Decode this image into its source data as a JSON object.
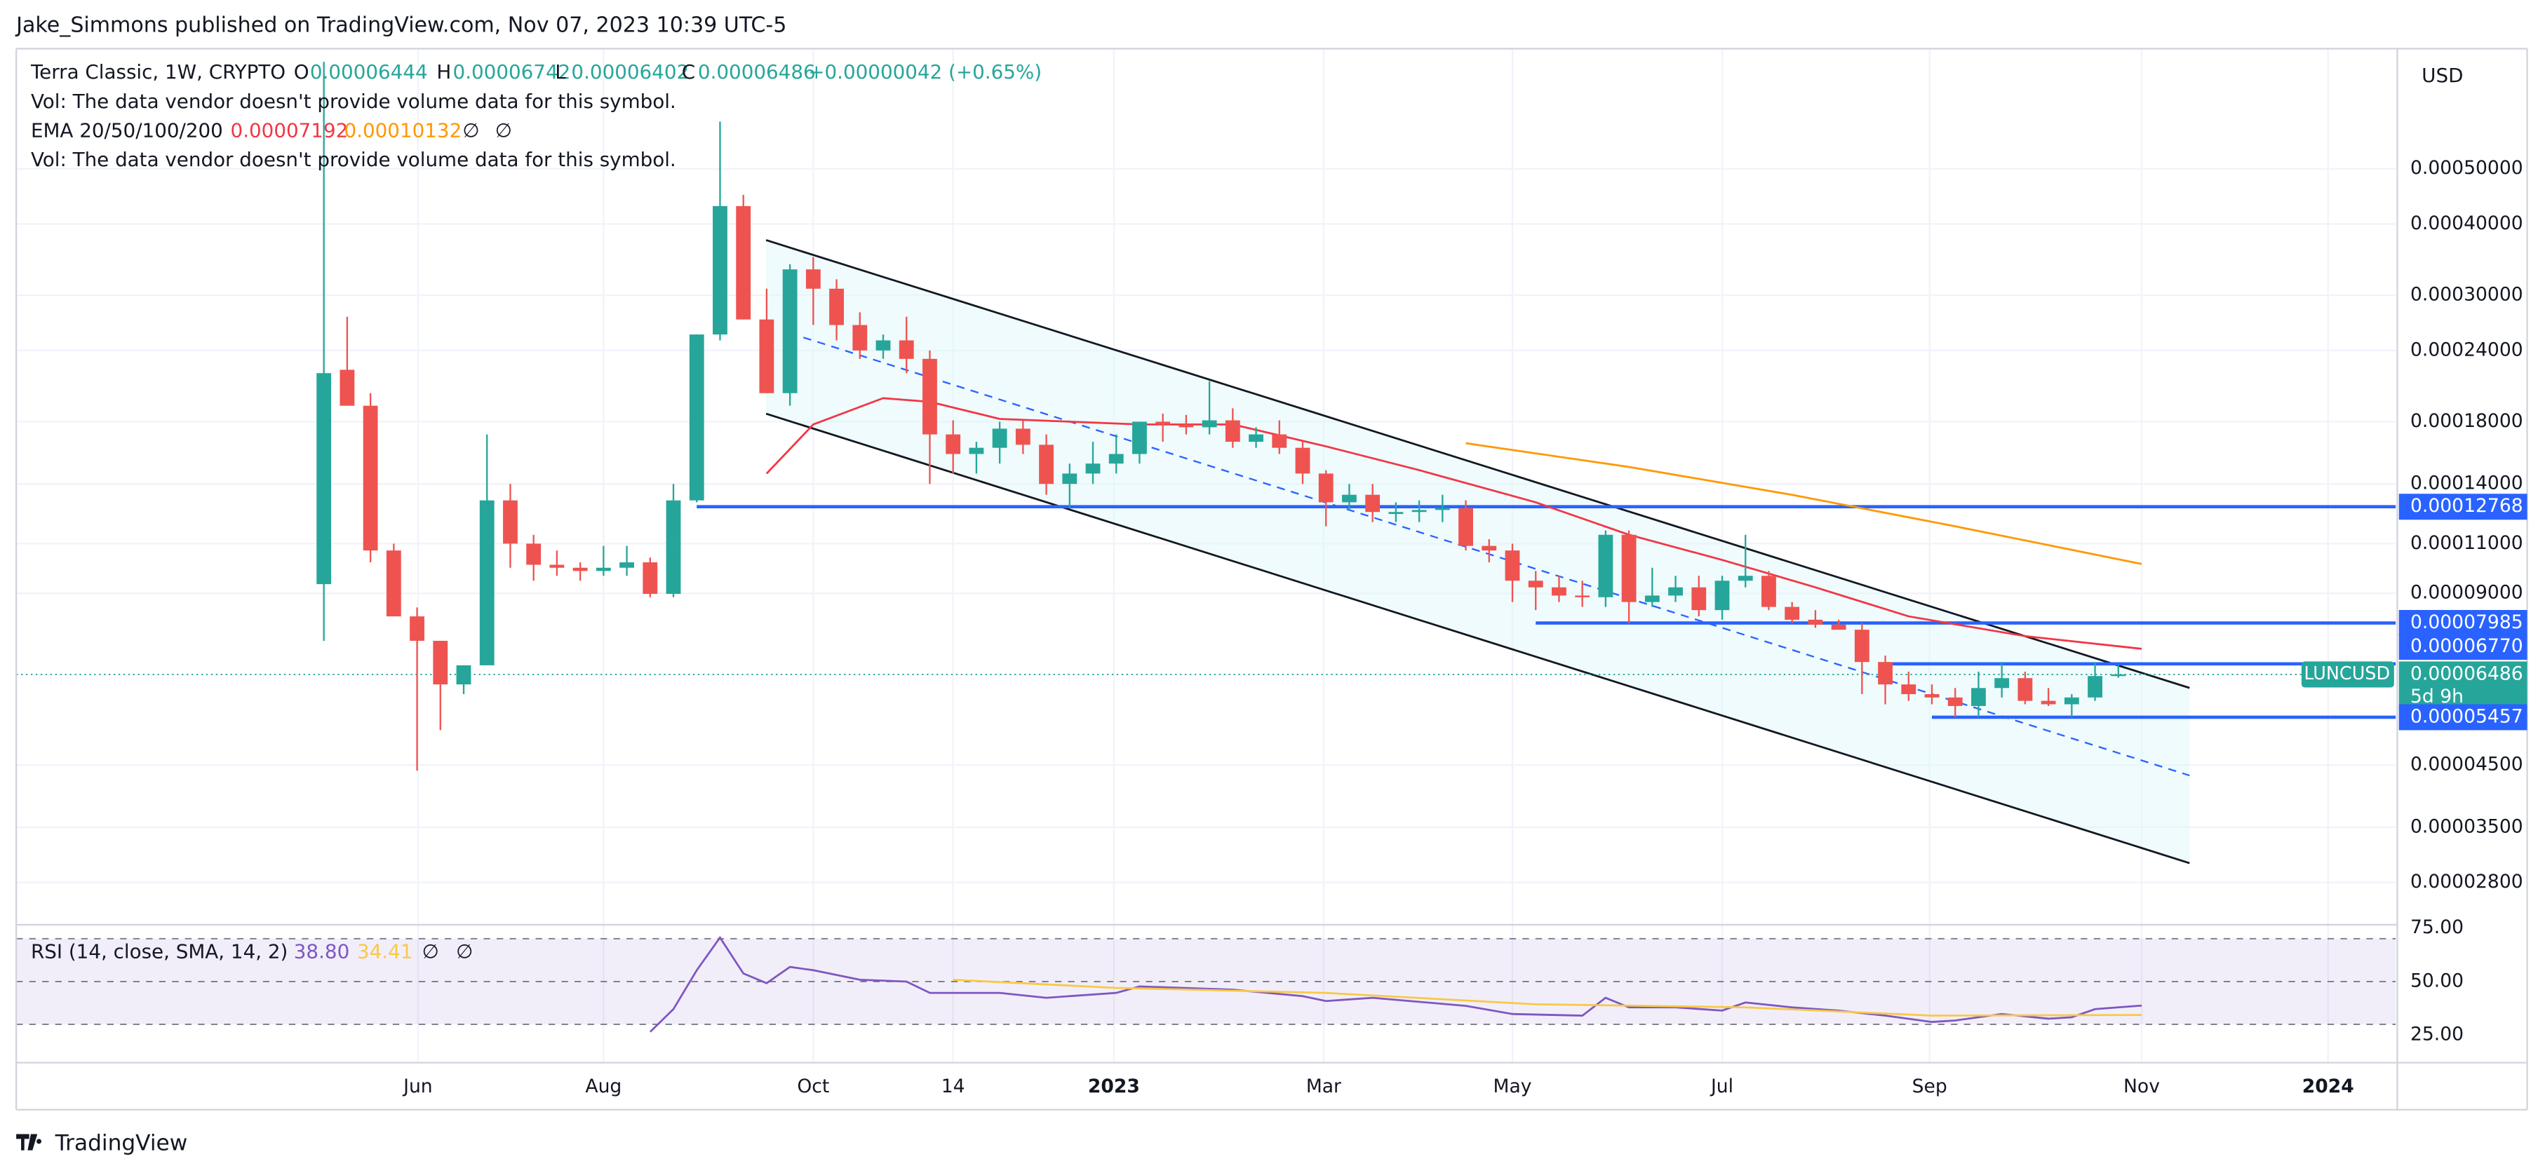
{
  "header": {
    "publisher": "Jake_Simmons published on TradingView.com, Nov 07, 2023 10:39 UTC-5",
    "brand": "TradingView"
  },
  "chart_data": [
    {
      "type": "candlestick",
      "symbol": "Terra Classic, 1W, CRYPTO",
      "ohlc_letters": [
        "O",
        "H",
        "L",
        "C"
      ],
      "change": "+0.00000042 (+0.65%)",
      "volume_notes": [
        "Vol: The data vendor doesn't provide volume data for this symbol.",
        "Vol: The data vendor doesn't provide volume data for this symbol."
      ],
      "indicator": "EMA 20/50/100/200",
      "empty_marks": [
        "∅",
        "∅"
      ],
      "currency": "USD",
      "ticker": "LUNCUSD",
      "countdown": "5d 9h",
      "log_scale": true,
      "grid": true,
      "up_color": "#26a69a",
      "down_color": "#ef5350",
      "level_color": "#2962ff",
      "ylim": [
        2.36e-05,
        0.000812
      ],
      "yticks": [
        {
          "value": 0.0005,
          "label": "0.00050000"
        },
        {
          "value": 0.0004,
          "label": "0.00040000"
        },
        {
          "value": 0.0003,
          "label": "0.00030000"
        },
        {
          "value": 0.00024,
          "label": "0.00024000"
        },
        {
          "value": 0.00018,
          "label": "0.00018000"
        },
        {
          "value": 0.00014,
          "label": "0.00014000"
        },
        {
          "value": 0.00011,
          "label": "0.00011000"
        },
        {
          "value": 9e-05,
          "label": "0.00009000"
        },
        {
          "value": 4.5e-05,
          "label": "0.00004500"
        },
        {
          "value": 3.5e-05,
          "label": "0.00003500"
        },
        {
          "value": 2.8e-05,
          "label": "0.00002800"
        }
      ],
      "xlim": [
        -13.2,
        88.9
      ],
      "xticks": [
        {
          "value": 4.04,
          "label": "Jun"
        },
        {
          "value": 12,
          "label": "Aug"
        },
        {
          "value": 21,
          "label": "Oct"
        },
        {
          "value": 27,
          "label": "14"
        },
        {
          "value": 33.9,
          "label": "2023"
        },
        {
          "value": 42.9,
          "label": "Mar"
        },
        {
          "value": 51,
          "label": "May"
        },
        {
          "value": 60,
          "label": "Jul"
        },
        {
          "value": 68.9,
          "label": "Sep"
        },
        {
          "value": 78,
          "label": "Nov"
        },
        {
          "value": 86,
          "label": "2024"
        }
      ],
      "candles": [
        [
          9.34e-05,
          0.00077,
          7.43e-05,
          0.000219
        ],
        [
          0.000222,
          0.000275,
          0.000192,
          0.000192
        ],
        [
          0.000192,
          0.000202,
          0.000102,
          0.000107
        ],
        [
          0.000107,
          0.00011,
          8.2e-05,
          8.2e-05
        ],
        [
          8.2e-05,
          8.5e-05,
          4.4e-05,
          7.43e-05
        ],
        [
          7.43e-05,
          7.43e-05,
          5.18e-05,
          6.23e-05
        ],
        [
          6.23e-05,
          6.73e-05,
          5.99e-05,
          6.73e-05
        ],
        [
          6.73e-05,
          0.000171,
          6.73e-05,
          0.000131
        ],
        [
          0.000131,
          0.00014,
          9.98e-05,
          0.00011
        ],
        [
          0.00011,
          0.000114,
          9.47e-05,
          0.000101
        ],
        [
          0.000101,
          0.000107,
          9.66e-05,
          9.98e-05
        ],
        [
          9.98e-05,
          0.000102,
          9.47e-05,
          9.85e-05
        ],
        [
          9.85e-05,
          0.000109,
          9.66e-05,
          9.98e-05
        ],
        [
          9.98e-05,
          0.000109,
          9.66e-05,
          0.000102
        ],
        [
          0.000102,
          0.000104,
          8.86e-05,
          8.98e-05
        ],
        [
          8.98e-05,
          0.00014,
          8.86e-05,
          0.000131
        ],
        [
          0.000131,
          0.000256,
          0.00013,
          0.000256
        ],
        [
          0.000256,
          0.000605,
          0.00025,
          0.00043
        ],
        [
          0.00043,
          0.00045,
          0.000272,
          0.000272
        ],
        [
          0.000272,
          0.000308,
          0.000202,
          0.000202
        ],
        [
          0.000202,
          0.00034,
          0.000192,
          0.000333
        ],
        [
          0.000333,
          0.00035,
          0.000266,
          0.000308
        ],
        [
          0.000308,
          0.00032,
          0.00025,
          0.000266
        ],
        [
          0.000266,
          0.00028,
          0.000232,
          0.00024
        ],
        [
          0.00024,
          0.000256,
          0.000232,
          0.00025
        ],
        [
          0.00025,
          0.000275,
          0.000219,
          0.000232
        ],
        [
          0.000232,
          0.00024,
          0.00014,
          0.000171
        ],
        [
          0.000171,
          0.000181,
          0.000146,
          0.000158
        ],
        [
          0.000158,
          0.000166,
          0.000146,
          0.000162
        ],
        [
          0.000162,
          0.00018,
          0.000152,
          0.000175
        ],
        [
          0.000175,
          0.000181,
          0.000158,
          0.000164
        ],
        [
          0.000164,
          0.000171,
          0.000134,
          0.00014
        ],
        [
          0.00014,
          0.000152,
          0.000127,
          0.000146
        ],
        [
          0.000146,
          0.000166,
          0.00014,
          0.000152
        ],
        [
          0.000152,
          0.000171,
          0.000146,
          0.000158
        ],
        [
          0.000158,
          0.00018,
          0.000152,
          0.00018
        ],
        [
          0.00018,
          0.000186,
          0.000166,
          0.000178
        ],
        [
          0.000178,
          0.000185,
          0.000171,
          0.000176
        ],
        [
          0.000176,
          0.000212,
          0.000171,
          0.000181
        ],
        [
          0.000181,
          0.00019,
          0.000162,
          0.000166
        ],
        [
          0.000166,
          0.000176,
          0.000162,
          0.000171
        ],
        [
          0.000171,
          0.000181,
          0.000158,
          0.000162
        ],
        [
          0.000162,
          0.000166,
          0.00014,
          0.000146
        ],
        [
          0.000146,
          0.000148,
          0.000118,
          0.00013
        ],
        [
          0.00013,
          0.00014,
          0.000126,
          0.000134
        ],
        [
          0.000134,
          0.00014,
          0.00012,
          0.000125
        ],
        [
          0.000124,
          0.00013,
          0.00012,
          0.000125
        ],
        [
          0.000125,
          0.000131,
          0.00012,
          0.000126
        ],
        [
          0.000126,
          0.000134,
          0.00012,
          0.000127
        ],
        [
          0.000127,
          0.000131,
          0.000107,
          0.000109
        ],
        [
          0.000109,
          0.000112,
          0.000102,
          0.000107
        ],
        [
          0.000107,
          0.00011,
          8.69e-05,
          9.47e-05
        ],
        [
          9.47e-05,
          9.85e-05,
          8.41e-05,
          9.22e-05
        ],
        [
          9.22e-05,
          9.66e-05,
          8.69e-05,
          8.92e-05
        ],
        [
          8.92e-05,
          9.47e-05,
          8.52e-05,
          8.86e-05
        ],
        [
          8.86e-05,
          0.000116,
          8.52e-05,
          0.000114
        ],
        [
          0.000114,
          0.000116,
          7.98e-05,
          8.69e-05
        ],
        [
          8.69e-05,
          9.98e-05,
          8.52e-05,
          8.92e-05
        ],
        [
          8.92e-05,
          9.66e-05,
          8.69e-05,
          9.22e-05
        ],
        [
          9.22e-05,
          9.66e-05,
          8.2e-05,
          8.41e-05
        ],
        [
          8.41e-05,
          9.66e-05,
          8.09e-05,
          9.47e-05
        ],
        [
          9.47e-05,
          0.000114,
          9.22e-05,
          9.66e-05
        ],
        [
          9.66e-05,
          9.85e-05,
          8.41e-05,
          8.52e-05
        ],
        [
          8.52e-05,
          8.69e-05,
          7.98e-05,
          8.09e-05
        ],
        [
          8.09e-05,
          8.41e-05,
          7.83e-05,
          7.93e-05
        ],
        [
          7.93e-05,
          8.09e-05,
          7.77e-05,
          7.77e-05
        ],
        [
          7.77e-05,
          7.98e-05,
          5.99e-05,
          6.82e-05
        ],
        [
          6.82e-05,
          7e-05,
          5.75e-05,
          6.23e-05
        ],
        [
          6.23e-05,
          6.56e-05,
          5.83e-05,
          5.99e-05
        ],
        [
          5.99e-05,
          6.23e-05,
          5.75e-05,
          5.91e-05
        ],
        [
          5.91e-05,
          6.14e-05,
          5.46e-05,
          5.71e-05
        ],
        [
          5.71e-05,
          6.56e-05,
          5.46e-05,
          6.14e-05
        ],
        [
          6.14e-05,
          6.82e-05,
          5.91e-05,
          6.39e-05
        ],
        [
          6.39e-05,
          6.56e-05,
          5.75e-05,
          5.83e-05
        ],
        [
          5.83e-05,
          6.14e-05,
          5.71e-05,
          5.75e-05
        ],
        [
          5.75e-05,
          5.99e-05,
          5.46e-05,
          5.91e-05
        ],
        [
          5.91e-05,
          6.82e-05,
          5.83e-05,
          6.444e-05
        ],
        [
          6.444e-05,
          6.742e-05,
          6.402e-05,
          6.486e-05
        ]
      ],
      "series": [
        {
          "color": "#f23645",
          "x": [
            19,
            21,
            24,
            26,
            29,
            35,
            39,
            43,
            47,
            52,
            56,
            60,
            64,
            68,
            73,
            78
          ],
          "values": [
            0.000146,
            0.000178,
            0.000198,
            0.000195,
            0.000182,
            0.000178,
            0.000178,
            0.000163,
            0.000148,
            0.00013,
            0.000114,
            0.000103,
            9.22e-05,
            8.2e-05,
            7.57e-05,
            7.192e-05
          ]
        },
        {
          "color": "#ff9800",
          "x": [
            49,
            56,
            63,
            70,
            78
          ],
          "values": [
            0.000165,
            0.00015,
            0.000134,
            0.000118,
            0.00010132
          ]
        }
      ],
      "levels": [
        {
          "value": 0.00012768,
          "start": 16
        },
        {
          "value": 7.985e-05,
          "start": 52
        },
        {
          "value": 6.77e-05,
          "label": "0.00006770",
          "start": 67.2
        },
        {
          "value": 5.457e-05,
          "start": 69
        }
      ]
    },
    {
      "type": "line",
      "title": "RSI (14, close, SMA, 14, 2)",
      "legend_value": "38.80",
      "empty_marks": [
        "∅",
        "∅"
      ],
      "band_color": "#7e57c2",
      "ylim": [
        12.1,
        76.5
      ],
      "yticks": [
        {
          "value": 75,
          "label": "75.00"
        },
        {
          "value": 50,
          "label": "50.00"
        },
        {
          "value": 25,
          "label": "25.00"
        }
      ],
      "bands": [
        70,
        50,
        30
      ],
      "series": [
        {
          "color": "#7e57c2",
          "x": [
            14,
            15,
            16,
            17,
            18,
            19,
            20,
            21,
            23,
            25,
            26,
            29,
            31,
            34,
            35,
            39,
            42,
            43,
            45,
            49,
            51,
            54,
            55,
            56,
            58,
            60,
            61,
            63,
            65,
            67,
            69,
            70,
            72,
            74,
            75,
            76,
            78
          ],
          "values": [
            26.5,
            37.1,
            55.3,
            70.5,
            53.8,
            49.2,
            56.8,
            55.3,
            50.8,
            50,
            44.7,
            44.7,
            42.4,
            44.7,
            47.7,
            46.2,
            43.2,
            40.9,
            42.4,
            38.6,
            34.8,
            34.1,
            42.4,
            37.9,
            37.9,
            36.4,
            40.2,
            37.9,
            36.4,
            34.1,
            31.1,
            31.8,
            34.8,
            32.6,
            33.3,
            37.1,
            38.8
          ]
        },
        {
          "color": "#f7c948",
          "x": [
            27,
            34,
            43,
            52,
            61,
            69,
            78
          ],
          "values": [
            50.8,
            47,
            44.7,
            39.4,
            37.9,
            34.1,
            34.41
          ]
        }
      ]
    }
  ]
}
